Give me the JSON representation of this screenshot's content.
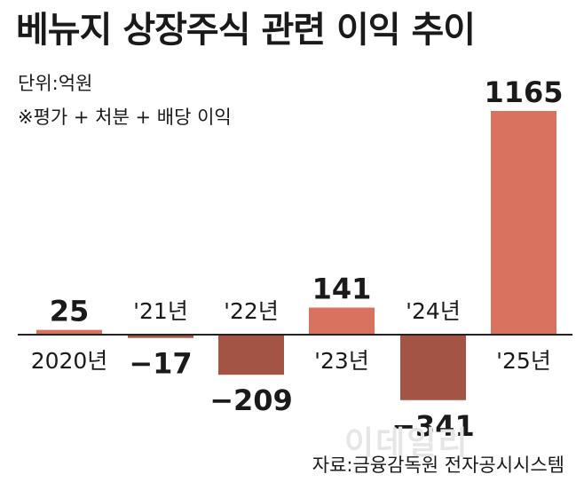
{
  "header": {
    "title": "베뉴지 상장주식 관련 이익 추이",
    "unit": "단위:억원",
    "note": "※평가 + 처분 + 배당 이익"
  },
  "footer": {
    "source": "자료:금융감독원 전자공시시스템",
    "watermark": "이데일리"
  },
  "colors": {
    "positive": "#d9735f",
    "negative": "#a45445",
    "axis": "#222222"
  },
  "chart_data": {
    "type": "bar",
    "title": "베뉴지 상장주식 관련 이익 추이",
    "xlabel": "",
    "ylabel": "",
    "unit": "억원",
    "categories": [
      "2020년",
      "'21년",
      "'22년",
      "'23년",
      "'24년",
      "'25년"
    ],
    "values": [
      25,
      -17,
      -209,
      141,
      -341,
      1165
    ],
    "value_labels": [
      "25",
      "−17",
      "−209",
      "141",
      "−341",
      "1165"
    ],
    "grid": false,
    "legend": "none"
  }
}
